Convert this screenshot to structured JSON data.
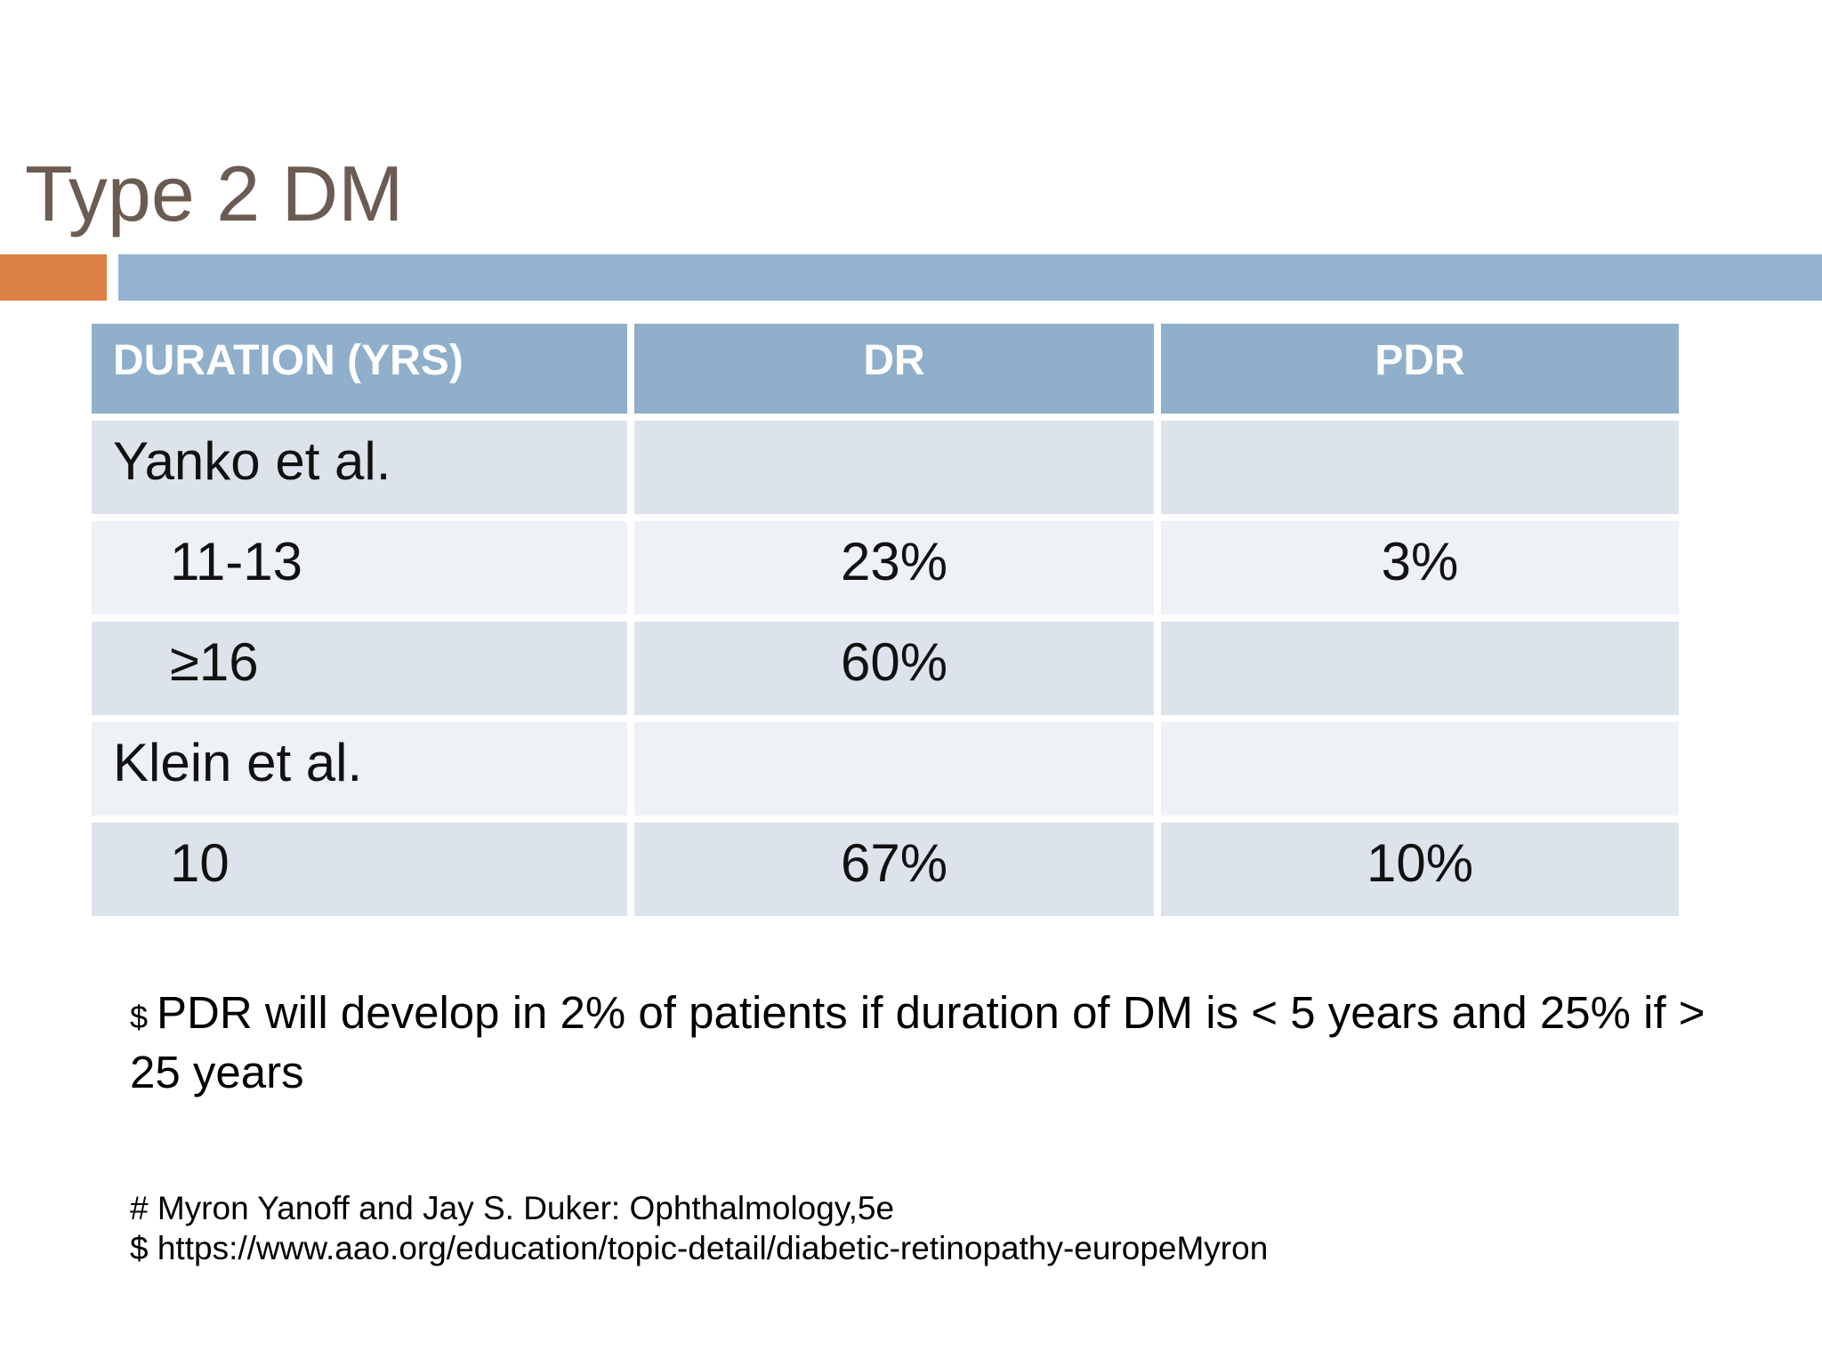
{
  "slide": {
    "title": "Type 2 DM",
    "colors": {
      "title_text": "#6c5b53",
      "accent_orange": "#dc8045",
      "accent_blue": "#95b2cf",
      "table_header_blue": "#8fafca",
      "row_shade_dark": "#dce3eb",
      "row_shade_light": "#eef1f5"
    }
  },
  "table": {
    "columns": [
      "DURATION (YRS)",
      "DR",
      "PDR"
    ],
    "rows": [
      {
        "label": "Yanko et al.",
        "dr": "",
        "pdr": ""
      },
      {
        "label": "11-13",
        "dr": "23%",
        "pdr": "3%"
      },
      {
        "label": "≥16",
        "dr": "60%",
        "pdr": ""
      },
      {
        "label": "Klein et al.",
        "dr": "",
        "pdr": ""
      },
      {
        "label": "10",
        "dr": "67%",
        "pdr": "10%"
      }
    ]
  },
  "footnote": {
    "marker": "$",
    "line1": "PDR will develop in 2% of patients if duration of DM is < 5 years and 25% if >",
    "line2": "25 years"
  },
  "references": [
    "# Myron Yanoff and Jay S. Duker: Ophthalmology,5e",
    "$ https://www.aao.org/education/topic-detail/diabetic-retinopathy-europeMyron"
  ]
}
